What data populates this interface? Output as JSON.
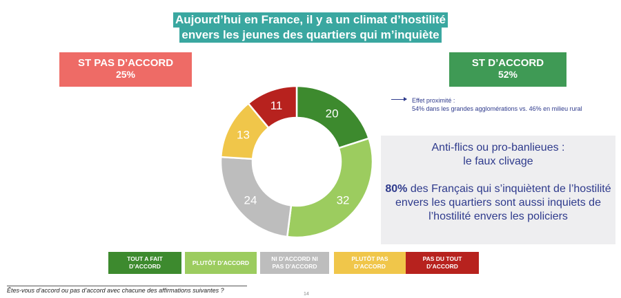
{
  "title": {
    "line1": "Aujourd’hui en France, il y a un climat d’hostilité",
    "line2": "envers les jeunes des quartiers qui m’inquiète"
  },
  "summary": {
    "disagree_label": "ST PAS D’ACCORD",
    "disagree_value": "25%",
    "agree_label": "ST D’ACCORD",
    "agree_value": "52%"
  },
  "note": {
    "line1": "Effet proximité :",
    "line2": "54% dans les grandes agglomérations vs. 46% en milieu rural"
  },
  "insight": {
    "heading_line1": "Anti-flics ou pro-banlieues :",
    "heading_line2": "le faux clivage",
    "highlight": "80%",
    "text": " des Français qui s’inquiètent de l’hostilité envers les quartiers sont aussi inquiets de l’hostilité envers les policiers"
  },
  "colors": {
    "title_bg": "#3aa7a0",
    "disagree_bg": "#ee6b66",
    "agree_bg": "#3f9a55",
    "insight_text": "#2e3a8c",
    "insight_bg": "#eeeef0"
  },
  "chart_data": {
    "type": "pie",
    "donut": true,
    "categories": [
      "TOUT A FAIT D’ACCORD",
      "PLUTÔT D’ACCORD",
      "NI D’ACCORD NI PAS D’ACCORD",
      "PLUTÔT PAS D’ACCORD",
      "PAS DU TOUT D’ACCORD"
    ],
    "values": [
      20,
      32,
      24,
      13,
      11
    ],
    "colors": [
      "#3d8a2e",
      "#9ccc5f",
      "#bdbdbd",
      "#f0c64a",
      "#b7221e"
    ],
    "legend_placement": "bottom"
  },
  "legend": [
    {
      "line1": "TOUT A FAIT",
      "line2": "D’ACCORD"
    },
    {
      "line1": "PLUTÔT D’ACCORD",
      "line2": ""
    },
    {
      "line1": "NI D’ACCORD NI",
      "line2": "PAS D’ACCORD"
    },
    {
      "line1": "PLUTÔT PAS",
      "line2": "D’ACCORD"
    },
    {
      "line1": "PAS DU TOUT",
      "line2": "D’ACCORD"
    }
  ],
  "question": "Êtes-vous d’accord ou pas d’accord avec chacune des affirmations suivantes ?",
  "page_number": "14"
}
